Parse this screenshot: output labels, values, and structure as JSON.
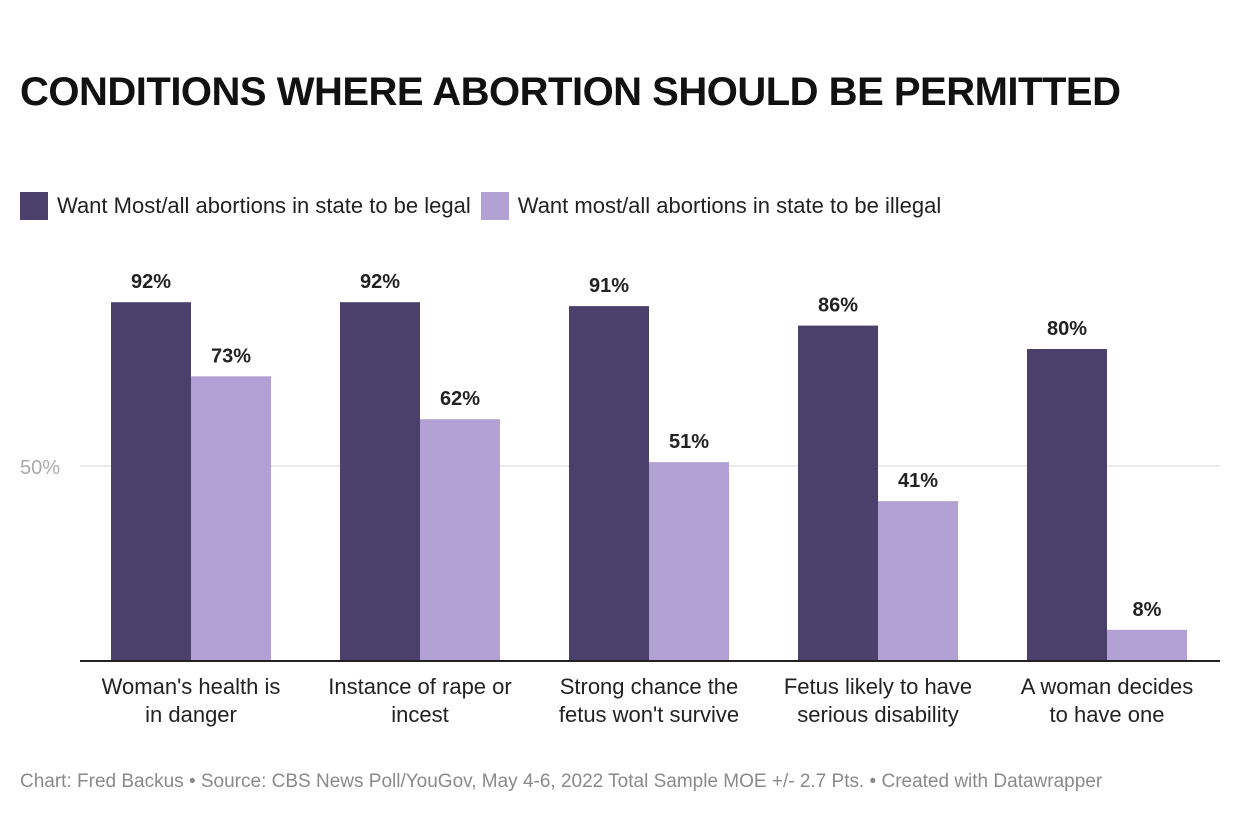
{
  "chart_data": {
    "type": "bar",
    "title": "CONDITIONS WHERE ABORTION SHOULD BE PERMITTED",
    "categories": [
      [
        "Woman's health is",
        "in danger"
      ],
      [
        "Instance of rape or",
        "incest"
      ],
      [
        "Strong chance the",
        "fetus won't survive"
      ],
      [
        "Fetus likely to have",
        "serious disability"
      ],
      [
        "A woman decides",
        "to have one"
      ]
    ],
    "series": [
      {
        "name": "Want Most/all abortions in state to be legal",
        "color": "#4b3f6b",
        "values": [
          92,
          92,
          91,
          86,
          80
        ]
      },
      {
        "name": "Want most/all abortions in state to be illegal",
        "color": "#b3a1d6",
        "values": [
          73,
          62,
          51,
          41,
          8
        ]
      }
    ],
    "value_suffix": "%",
    "yticks": [
      {
        "value": 50,
        "label": "50%"
      }
    ],
    "ylim": [
      0,
      100
    ],
    "grid": true,
    "legend": "top-left"
  },
  "footer": "Chart: Fred Backus • Source: CBS News Poll/YouGov, May 4-6, 2022 Total Sample MOE +/- 2.7 Pts. • Created with Datawrapper"
}
